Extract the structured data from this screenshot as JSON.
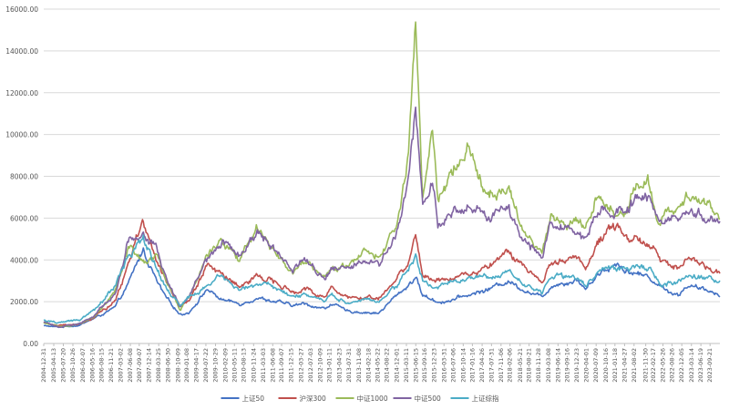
{
  "chart_data": {
    "type": "line",
    "title": "",
    "xlabel": "",
    "ylabel": "",
    "ylim": [
      0,
      16000
    ],
    "yticks": [
      "0.00",
      "2000.00",
      "4000.00",
      "6000.00",
      "8000.00",
      "10000.00",
      "12000.00",
      "14000.00",
      "16000.00"
    ],
    "xlim": [
      "2004-12-31",
      "2023-12-31"
    ],
    "x_tick_labels": [
      "2004-12-31",
      "2005-04-13",
      "2005-07-20",
      "2005-10-26",
      "2006-02-07",
      "2006-05-16",
      "2006-08-15",
      "2006-11-21",
      "2007-03-02",
      "2007-06-08",
      "2007-09-07",
      "2007-12-14",
      "2008-03-25",
      "2008-06-30",
      "2008-10-09",
      "2009-01-08",
      "2009-04-17",
      "2009-07-22",
      "2009-10-29",
      "2010-02-09",
      "2010-05-11",
      "2010-08-13",
      "2010-11-24",
      "2011-03-03",
      "2011-06-08",
      "2011-09-07",
      "2011-12-15",
      "2012-03-27",
      "2012-07-03",
      "2012-10-09",
      "2013-01-11",
      "2013-04-23",
      "2013-07-31",
      "2013-11-08",
      "2014-02-18",
      "2014-05-22",
      "2014-08-22",
      "2014-12-01",
      "2015-03-11",
      "2015-06-15",
      "2015-09-16",
      "2015-12-23",
      "2016-03-31",
      "2016-07-06",
      "2016-10-14",
      "2017-01-16",
      "2017-04-26",
      "2017-07-31",
      "2017-11-06",
      "2018-02-06",
      "2018-05-21",
      "2018-08-21",
      "2018-11-28",
      "2019-03-08",
      "2019-06-14",
      "2019-09-16",
      "2019-12-23",
      "2020-04-01",
      "2020-07-09",
      "2020-10-16",
      "2021-01-18",
      "2021-04-27",
      "2021-08-02",
      "2021-11-30",
      "2022-02-17",
      "2022-05-26",
      "2022-08-26",
      "2022-12-05",
      "2023-03-14",
      "2023-06-19",
      "2023-09-21"
    ],
    "grid": true,
    "legend_position": "bottom",
    "series": [
      {
        "name": "上证50",
        "color": "#4472c4",
        "x": [
          "2004-12-31",
          "2005-06-01",
          "2006-01-01",
          "2006-06-01",
          "2007-01-01",
          "2007-05-15",
          "2007-10-16",
          "2008-03-01",
          "2008-06-01",
          "2008-11-01",
          "2009-02-01",
          "2009-08-01",
          "2010-01-01",
          "2010-07-01",
          "2011-01-01",
          "2011-06-01",
          "2012-01-01",
          "2012-05-01",
          "2012-12-01",
          "2013-02-01",
          "2013-06-25",
          "2014-01-01",
          "2014-06-01",
          "2014-12-01",
          "2015-04-01",
          "2015-06-12",
          "2015-08-26",
          "2016-01-28",
          "2016-06-01",
          "2017-01-01",
          "2017-06-01",
          "2018-01-26",
          "2018-06-01",
          "2019-01-03",
          "2019-04-08",
          "2019-12-31",
          "2020-03-23",
          "2020-07-13",
          "2021-02-18",
          "2021-06-01",
          "2022-01-01",
          "2022-04-26",
          "2022-10-31",
          "2023-01-30",
          "2023-06-01",
          "2023-12-31"
        ],
        "values": [
          850,
          780,
          880,
          1200,
          1700,
          2800,
          4500,
          3000,
          2200,
          1400,
          1500,
          2600,
          2100,
          1900,
          2200,
          2050,
          1800,
          1900,
          1650,
          1950,
          1550,
          1500,
          1450,
          2300,
          2800,
          3200,
          2300,
          2000,
          2050,
          2350,
          2550,
          3000,
          2650,
          2200,
          2800,
          3050,
          2600,
          3300,
          3850,
          3450,
          3200,
          2750,
          2300,
          2800,
          2600,
          2400
        ]
      },
      {
        "name": "沪深300",
        "color": "#c0504d",
        "x": [
          "2004-12-31",
          "2005-06-01",
          "2006-01-01",
          "2006-06-01",
          "2007-01-01",
          "2007-05-15",
          "2007-10-16",
          "2008-03-01",
          "2008-06-01",
          "2008-11-01",
          "2009-02-01",
          "2009-08-01",
          "2010-01-01",
          "2010-07-01",
          "2011-01-01",
          "2011-06-01",
          "2012-01-01",
          "2012-05-01",
          "2012-12-01",
          "2013-02-01",
          "2013-06-25",
          "2014-01-01",
          "2014-06-01",
          "2014-12-01",
          "2015-04-01",
          "2015-06-12",
          "2015-08-26",
          "2016-01-28",
          "2016-06-01",
          "2017-01-01",
          "2017-06-01",
          "2018-01-26",
          "2018-06-01",
          "2019-01-03",
          "2019-04-08",
          "2019-12-31",
          "2020-03-23",
          "2020-07-13",
          "2021-02-18",
          "2021-06-01",
          "2022-01-01",
          "2022-04-26",
          "2022-10-31",
          "2023-01-30",
          "2023-06-01",
          "2023-12-31"
        ],
        "values": [
          1000,
          850,
          950,
          1300,
          2000,
          3800,
          5800,
          4000,
          3000,
          1700,
          2000,
          3700,
          3400,
          2800,
          3200,
          3000,
          2500,
          2700,
          2200,
          2700,
          2200,
          2200,
          2100,
          3100,
          4000,
          5300,
          3300,
          3000,
          3150,
          3400,
          3600,
          4400,
          3800,
          3000,
          3900,
          4100,
          3600,
          4700,
          5800,
          5000,
          4900,
          4000,
          3600,
          4200,
          3900,
          3450
        ]
      },
      {
        "name": "中证1000",
        "color": "#9bbb59",
        "x": [
          "2004-12-31",
          "2005-06-01",
          "2006-01-01",
          "2006-06-01",
          "2007-01-01",
          "2007-05-15",
          "2007-10-16",
          "2008-03-01",
          "2008-06-01",
          "2008-11-01",
          "2009-02-01",
          "2009-08-01",
          "2010-01-01",
          "2010-07-01",
          "2011-01-01",
          "2011-06-01",
          "2012-01-01",
          "2012-05-01",
          "2012-12-01",
          "2013-02-01",
          "2013-06-25",
          "2014-01-01",
          "2014-06-01",
          "2014-12-01",
          "2015-04-01",
          "2015-06-12",
          "2015-08-26",
          "2015-11-30",
          "2016-01-28",
          "2016-06-01",
          "2016-11-29",
          "2017-06-01",
          "2018-01-26",
          "2018-06-01",
          "2019-01-03",
          "2019-04-08",
          "2019-12-31",
          "2020-03-23",
          "2020-07-13",
          "2021-02-18",
          "2021-06-01",
          "2021-09-14",
          "2022-01-01",
          "2022-04-26",
          "2022-10-31",
          "2023-01-30",
          "2023-06-01",
          "2023-12-31"
        ],
        "values": [
          1000,
          780,
          950,
          1300,
          2400,
          4500,
          4000,
          4200,
          3000,
          1600,
          2200,
          4300,
          5000,
          4000,
          5500,
          4500,
          3500,
          3900,
          3100,
          3600,
          3700,
          4300,
          4100,
          5800,
          9000,
          15000,
          7000,
          10500,
          7000,
          8000,
          9200,
          7500,
          7500,
          5400,
          4300,
          6000,
          5900,
          5300,
          7000,
          6200,
          6600,
          8000,
          7700,
          5800,
          6700,
          6800,
          7000,
          6000
        ]
      },
      {
        "name": "中证500",
        "color": "#8064a2",
        "x": [
          "2004-12-31",
          "2005-06-01",
          "2006-01-01",
          "2006-06-01",
          "2007-01-01",
          "2007-05-15",
          "2007-10-16",
          "2008-03-01",
          "2008-06-01",
          "2008-11-01",
          "2009-02-01",
          "2009-08-01",
          "2010-01-01",
          "2010-07-01",
          "2011-01-01",
          "2011-06-01",
          "2012-01-01",
          "2012-05-01",
          "2012-12-01",
          "2013-02-01",
          "2013-06-25",
          "2014-01-01",
          "2014-06-01",
          "2014-12-01",
          "2015-04-01",
          "2015-06-12",
          "2015-08-26",
          "2015-11-30",
          "2016-01-28",
          "2016-06-01",
          "2016-11-29",
          "2017-06-01",
          "2018-01-26",
          "2018-06-01",
          "2019-01-03",
          "2019-04-08",
          "2019-12-31",
          "2020-03-23",
          "2020-07-13",
          "2021-02-18",
          "2021-06-01",
          "2021-09-14",
          "2022-01-01",
          "2022-04-26",
          "2022-10-31",
          "2023-01-30",
          "2023-06-01",
          "2023-12-31"
        ],
        "values": [
          1000,
          780,
          950,
          1300,
          2400,
          4900,
          5200,
          4700,
          3200,
          1700,
          2300,
          4000,
          5000,
          4100,
          5400,
          4600,
          3600,
          4000,
          3100,
          3700,
          3600,
          4000,
          3800,
          5300,
          8000,
          11500,
          6200,
          7800,
          5700,
          6200,
          6700,
          6100,
          6300,
          5200,
          4100,
          5800,
          5300,
          5000,
          6400,
          6300,
          6600,
          7300,
          7200,
          5600,
          6000,
          6400,
          6300,
          5600
        ]
      },
      {
        "name": "上证综指",
        "color": "#4bacc6",
        "x": [
          "2004-12-31",
          "2005-06-01",
          "2006-01-01",
          "2006-06-01",
          "2007-01-01",
          "2007-05-15",
          "2007-10-16",
          "2008-03-01",
          "2008-06-01",
          "2008-11-01",
          "2009-02-01",
          "2009-08-01",
          "2010-01-01",
          "2010-07-01",
          "2011-01-01",
          "2011-06-01",
          "2012-01-01",
          "2012-05-01",
          "2012-12-01",
          "2013-02-01",
          "2013-06-25",
          "2014-01-01",
          "2014-06-01",
          "2014-12-01",
          "2015-04-01",
          "2015-06-12",
          "2015-08-26",
          "2016-01-28",
          "2016-06-01",
          "2017-01-01",
          "2017-06-01",
          "2018-01-26",
          "2018-06-01",
          "2019-01-03",
          "2019-04-08",
          "2019-12-31",
          "2020-03-23",
          "2020-07-13",
          "2021-02-18",
          "2021-06-01",
          "2022-01-01",
          "2022-04-26",
          "2022-10-31",
          "2023-01-30",
          "2023-06-01",
          "2023-12-31"
        ],
        "values": [
          1100,
          1000,
          1150,
          1600,
          2700,
          4100,
          5000,
          3600,
          2700,
          1800,
          2200,
          2700,
          3200,
          2600,
          2800,
          2750,
          2250,
          2400,
          2000,
          2400,
          1950,
          2100,
          2050,
          2700,
          3700,
          4200,
          3000,
          2700,
          2900,
          3100,
          3200,
          3400,
          3000,
          2500,
          3200,
          3050,
          2700,
          3400,
          3600,
          3600,
          3600,
          2900,
          2900,
          3200,
          3150,
          2950
        ]
      }
    ]
  }
}
